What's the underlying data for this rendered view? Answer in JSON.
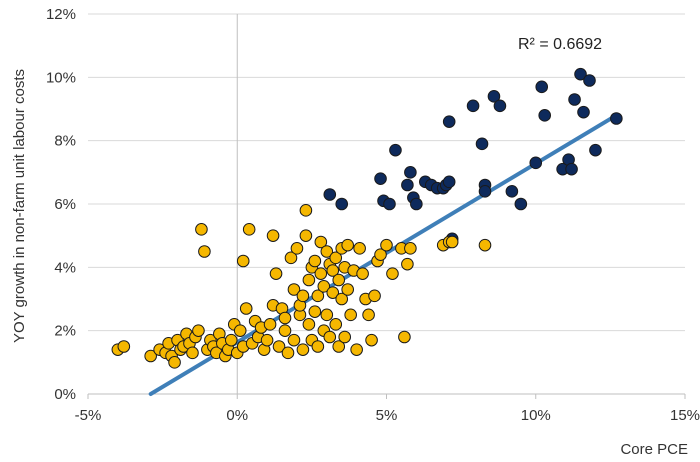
{
  "chart_data": {
    "type": "scatter",
    "title": "",
    "xlabel": "Core PCE",
    "ylabel": "YOY growth in non-farm unit labour costs",
    "xlim": [
      -0.05,
      0.15
    ],
    "ylim": [
      0,
      0.12
    ],
    "x_ticks": [
      -0.05,
      0,
      0.05,
      0.1,
      0.15
    ],
    "x_tick_labels": [
      "-5%",
      "0%",
      "5%",
      "10%",
      "15%"
    ],
    "y_ticks": [
      0,
      0.02,
      0.04,
      0.06,
      0.08,
      0.1,
      0.12
    ],
    "y_tick_labels": [
      "0%",
      "2%",
      "4%",
      "6%",
      "8%",
      "10%",
      "12%"
    ],
    "grid": "horizontal",
    "annotation": "R² = 0.6692",
    "colors": {
      "gold": "#f5b700",
      "navy": "#0e2a5c",
      "trend": "#3f7fb8",
      "grid": "#d9d9d9"
    },
    "trendline": {
      "x": [
        -0.029,
        0.127
      ],
      "y": [
        0,
        0.088
      ]
    },
    "series": [
      {
        "color": "#0e2a5c",
        "points": [
          [
            0.031,
            0.063
          ],
          [
            0.035,
            0.06
          ],
          [
            0.048,
            0.068
          ],
          [
            0.049,
            0.061
          ],
          [
            0.051,
            0.06
          ],
          [
            0.053,
            0.077
          ],
          [
            0.057,
            0.066
          ],
          [
            0.058,
            0.07
          ],
          [
            0.059,
            0.062
          ],
          [
            0.06,
            0.06
          ],
          [
            0.063,
            0.067
          ],
          [
            0.065,
            0.066
          ],
          [
            0.067,
            0.065
          ],
          [
            0.069,
            0.065
          ],
          [
            0.07,
            0.066
          ],
          [
            0.071,
            0.067
          ],
          [
            0.071,
            0.086
          ],
          [
            0.072,
            0.049
          ],
          [
            0.079,
            0.091
          ],
          [
            0.082,
            0.079
          ],
          [
            0.083,
            0.066
          ],
          [
            0.083,
            0.064
          ],
          [
            0.086,
            0.094
          ],
          [
            0.088,
            0.091
          ],
          [
            0.092,
            0.064
          ],
          [
            0.095,
            0.06
          ],
          [
            0.1,
            0.073
          ],
          [
            0.102,
            0.097
          ],
          [
            0.103,
            0.088
          ],
          [
            0.109,
            0.071
          ],
          [
            0.111,
            0.074
          ],
          [
            0.112,
            0.071
          ],
          [
            0.113,
            0.093
          ],
          [
            0.115,
            0.101
          ],
          [
            0.116,
            0.089
          ],
          [
            0.118,
            0.099
          ],
          [
            0.12,
            0.077
          ],
          [
            0.127,
            0.087
          ]
        ]
      },
      {
        "color": "#f5b700",
        "points": [
          [
            -0.04,
            0.014
          ],
          [
            -0.038,
            0.015
          ],
          [
            -0.029,
            0.012
          ],
          [
            -0.026,
            0.014
          ],
          [
            -0.024,
            0.013
          ],
          [
            -0.023,
            0.016
          ],
          [
            -0.022,
            0.012
          ],
          [
            -0.021,
            0.01
          ],
          [
            -0.02,
            0.017
          ],
          [
            -0.019,
            0.014
          ],
          [
            -0.018,
            0.015
          ],
          [
            -0.017,
            0.019
          ],
          [
            -0.016,
            0.016
          ],
          [
            -0.015,
            0.013
          ],
          [
            -0.014,
            0.018
          ],
          [
            -0.013,
            0.02
          ],
          [
            -0.012,
            0.052
          ],
          [
            -0.011,
            0.045
          ],
          [
            -0.01,
            0.014
          ],
          [
            -0.009,
            0.017
          ],
          [
            -0.008,
            0.015
          ],
          [
            -0.007,
            0.013
          ],
          [
            -0.006,
            0.019
          ],
          [
            -0.005,
            0.016
          ],
          [
            -0.004,
            0.012
          ],
          [
            -0.003,
            0.014
          ],
          [
            -0.002,
            0.017
          ],
          [
            -0.001,
            0.022
          ],
          [
            0.0,
            0.013
          ],
          [
            0.001,
            0.02
          ],
          [
            0.002,
            0.015
          ],
          [
            0.002,
            0.042
          ],
          [
            0.003,
            0.027
          ],
          [
            0.004,
            0.052
          ],
          [
            0.005,
            0.016
          ],
          [
            0.006,
            0.023
          ],
          [
            0.007,
            0.018
          ],
          [
            0.008,
            0.021
          ],
          [
            0.009,
            0.014
          ],
          [
            0.01,
            0.017
          ],
          [
            0.011,
            0.022
          ],
          [
            0.012,
            0.028
          ],
          [
            0.012,
            0.05
          ],
          [
            0.013,
            0.038
          ],
          [
            0.014,
            0.015
          ],
          [
            0.015,
            0.027
          ],
          [
            0.016,
            0.02
          ],
          [
            0.016,
            0.024
          ],
          [
            0.017,
            0.013
          ],
          [
            0.018,
            0.043
          ],
          [
            0.019,
            0.017
          ],
          [
            0.019,
            0.033
          ],
          [
            0.02,
            0.046
          ],
          [
            0.021,
            0.025
          ],
          [
            0.021,
            0.028
          ],
          [
            0.022,
            0.014
          ],
          [
            0.022,
            0.031
          ],
          [
            0.023,
            0.058
          ],
          [
            0.023,
            0.05
          ],
          [
            0.024,
            0.022
          ],
          [
            0.024,
            0.036
          ],
          [
            0.025,
            0.04
          ],
          [
            0.025,
            0.017
          ],
          [
            0.026,
            0.026
          ],
          [
            0.026,
            0.042
          ],
          [
            0.027,
            0.015
          ],
          [
            0.027,
            0.031
          ],
          [
            0.028,
            0.048
          ],
          [
            0.028,
            0.038
          ],
          [
            0.029,
            0.02
          ],
          [
            0.029,
            0.034
          ],
          [
            0.03,
            0.045
          ],
          [
            0.03,
            0.025
          ],
          [
            0.031,
            0.041
          ],
          [
            0.031,
            0.018
          ],
          [
            0.032,
            0.032
          ],
          [
            0.032,
            0.039
          ],
          [
            0.033,
            0.022
          ],
          [
            0.033,
            0.043
          ],
          [
            0.034,
            0.015
          ],
          [
            0.034,
            0.036
          ],
          [
            0.035,
            0.046
          ],
          [
            0.035,
            0.03
          ],
          [
            0.036,
            0.04
          ],
          [
            0.036,
            0.018
          ],
          [
            0.037,
            0.033
          ],
          [
            0.037,
            0.047
          ],
          [
            0.038,
            0.025
          ],
          [
            0.039,
            0.039
          ],
          [
            0.04,
            0.014
          ],
          [
            0.041,
            0.046
          ],
          [
            0.042,
            0.038
          ],
          [
            0.043,
            0.03
          ],
          [
            0.044,
            0.025
          ],
          [
            0.045,
            0.017
          ],
          [
            0.046,
            0.031
          ],
          [
            0.047,
            0.042
          ],
          [
            0.048,
            0.044
          ],
          [
            0.05,
            0.047
          ],
          [
            0.052,
            0.038
          ],
          [
            0.055,
            0.046
          ],
          [
            0.056,
            0.018
          ],
          [
            0.057,
            0.041
          ],
          [
            0.058,
            0.046
          ],
          [
            0.069,
            0.047
          ],
          [
            0.071,
            0.048
          ],
          [
            0.072,
            0.048
          ],
          [
            0.083,
            0.047
          ]
        ]
      }
    ]
  }
}
